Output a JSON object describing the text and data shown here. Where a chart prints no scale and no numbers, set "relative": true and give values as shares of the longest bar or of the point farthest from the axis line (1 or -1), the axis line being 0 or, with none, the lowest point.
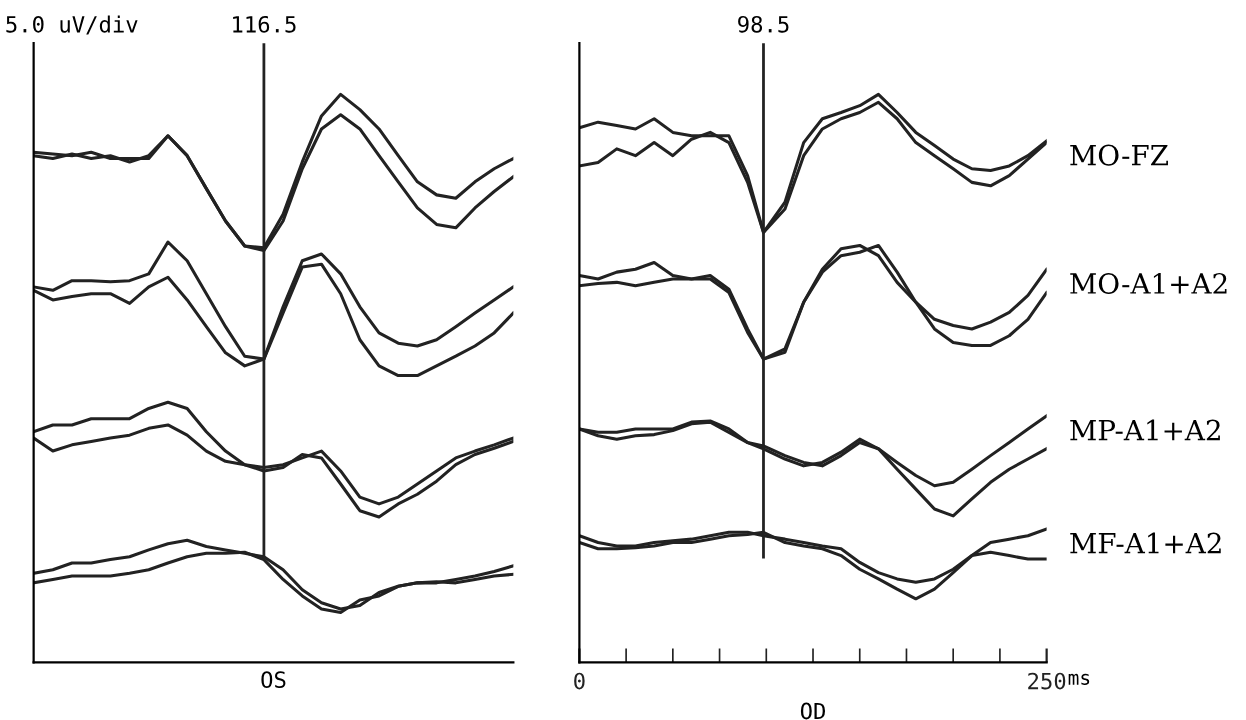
{
  "chart_data": [
    {
      "type": "line",
      "relative": true,
      "xlabel": "OS",
      "annotations": [
        "5.0 uV/div",
        "116.5"
      ],
      "tick_labels": false,
      "grid": false,
      "legend": false,
      "categories": [
        null,
        null,
        null,
        null,
        null,
        null,
        null,
        null,
        null,
        null,
        null,
        null,
        null,
        null,
        null,
        null,
        null,
        null,
        null,
        null,
        null,
        null,
        null,
        null,
        null,
        null
      ],
      "series": [
        {
          "color": "#222222",
          "values": [
            0.898,
            0.895,
            0.892,
            0.898,
            0.887,
            0.887,
            0.887,
            0.927,
            0.892,
            0.834,
            0.777,
            0.733,
            0.73,
            0.789,
            0.881,
            0.962,
            1.0,
            0.973,
            0.939,
            0.892,
            0.846,
            0.823,
            0.817,
            0.846,
            0.869,
            0.887
          ]
        },
        {
          "color": "#222222",
          "values": [
            0.892,
            0.887,
            0.895,
            0.887,
            0.892,
            0.881,
            0.892,
            0.927,
            0.892,
            0.834,
            0.777,
            0.733,
            0.725,
            0.777,
            0.869,
            0.939,
            0.964,
            0.939,
            0.892,
            0.846,
            0.8,
            0.771,
            0.765,
            0.8,
            0.829,
            0.855
          ]
        },
        {
          "color": "#222222",
          "values": [
            0.661,
            0.655,
            0.672,
            0.672,
            0.67,
            0.672,
            0.684,
            0.74,
            0.707,
            0.649,
            0.591,
            0.539,
            0.534,
            0.626,
            0.707,
            0.719,
            0.684,
            0.626,
            0.58,
            0.562,
            0.557,
            0.568,
            0.591,
            0.615,
            0.638,
            0.661
          ]
        },
        {
          "color": "#222222",
          "values": [
            0.655,
            0.638,
            0.644,
            0.649,
            0.649,
            0.632,
            0.661,
            0.678,
            0.638,
            0.591,
            0.545,
            0.522,
            0.534,
            0.615,
            0.696,
            0.701,
            0.649,
            0.568,
            0.522,
            0.505,
            0.505,
            0.522,
            0.539,
            0.557,
            0.58,
            0.615
          ]
        },
        {
          "color": "#222222",
          "values": [
            0.406,
            0.418,
            0.418,
            0.429,
            0.429,
            0.429,
            0.447,
            0.458,
            0.447,
            0.406,
            0.372,
            0.348,
            0.343,
            0.348,
            0.36,
            0.372,
            0.337,
            0.291,
            0.279,
            0.291,
            0.314,
            0.337,
            0.36,
            0.372,
            0.383,
            0.395
          ]
        },
        {
          "color": "#222222",
          "values": [
            0.395,
            0.372,
            0.383,
            0.389,
            0.395,
            0.4,
            0.412,
            0.418,
            0.4,
            0.372,
            0.354,
            0.348,
            0.337,
            0.343,
            0.366,
            0.36,
            0.314,
            0.267,
            0.256,
            0.279,
            0.296,
            0.319,
            0.348,
            0.366,
            0.377,
            0.389
          ]
        },
        {
          "color": "#222222",
          "values": [
            0.157,
            0.163,
            0.175,
            0.175,
            0.181,
            0.186,
            0.198,
            0.209,
            0.215,
            0.204,
            0.198,
            0.192,
            0.186,
            0.163,
            0.128,
            0.105,
            0.094,
            0.1,
            0.123,
            0.134,
            0.14,
            0.14,
            0.146,
            0.152,
            0.16,
            0.17
          ]
        },
        {
          "color": "#222222",
          "values": [
            0.14,
            0.146,
            0.152,
            0.152,
            0.152,
            0.157,
            0.163,
            0.175,
            0.186,
            0.192,
            0.192,
            0.194,
            0.181,
            0.146,
            0.117,
            0.094,
            0.088,
            0.11,
            0.117,
            0.134,
            0.14,
            0.142,
            0.14,
            0.146,
            0.152,
            0.155
          ]
        }
      ]
    },
    {
      "type": "line",
      "relative": true,
      "xlabel": "OD",
      "annotations": [
        "ms"
      ],
      "xlim": [
        0,
        250
      ],
      "xticks": [
        0,
        {
          "value": 25,
          "label": null
        },
        {
          "value": 50,
          "label": null
        },
        {
          "value": 75,
          "label": null
        },
        {
          "value": 100,
          "label": null
        },
        {
          "value": 125,
          "label": null
        },
        {
          "value": 150,
          "label": null
        },
        {
          "value": 175,
          "label": null
        },
        {
          "value": 200,
          "label": null
        },
        {
          "value": 225,
          "label": null
        },
        250
      ],
      "tick_labels": "x",
      "grid": false,
      "legend": false,
      "ref_lines": [
        {
          "axis": "x",
          "value": 98.5,
          "label": "98.5",
          "color": "#222222"
        }
      ],
      "x": [
        0,
        10,
        20,
        30,
        40,
        50,
        60,
        70,
        80,
        90,
        98.5,
        110,
        120,
        130,
        140,
        150,
        160,
        170,
        180,
        190,
        200,
        210,
        220,
        230,
        240,
        250
      ],
      "series": [
        {
          "name": "MO-FZ",
          "color": "#222222",
          "values": [
            0.941,
            0.951,
            0.945,
            0.939,
            0.957,
            0.933,
            0.927,
            0.927,
            0.927,
            0.857,
            0.757,
            0.81,
            0.915,
            0.957,
            0.968,
            0.98,
            1.0,
            0.968,
            0.933,
            0.91,
            0.886,
            0.869,
            0.866,
            0.874,
            0.892,
            0.918
          ]
        },
        {
          "color": "#222222",
          "values": [
            0.874,
            0.88,
            0.904,
            0.892,
            0.915,
            0.892,
            0.921,
            0.933,
            0.915,
            0.845,
            0.757,
            0.798,
            0.892,
            0.939,
            0.957,
            0.968,
            0.986,
            0.957,
            0.915,
            0.892,
            0.869,
            0.845,
            0.839,
            0.857,
            0.886,
            0.915
          ]
        },
        {
          "name": "MO-A1+A2",
          "color": "#222222",
          "values": [
            0.681,
            0.675,
            0.687,
            0.692,
            0.704,
            0.681,
            0.675,
            0.681,
            0.657,
            0.587,
            0.534,
            0.552,
            0.634,
            0.692,
            0.728,
            0.734,
            0.716,
            0.669,
            0.634,
            0.604,
            0.593,
            0.587,
            0.599,
            0.616,
            0.646,
            0.692
          ]
        },
        {
          "color": "#222222",
          "values": [
            0.663,
            0.667,
            0.669,
            0.663,
            0.669,
            0.675,
            0.675,
            0.675,
            0.651,
            0.581,
            0.534,
            0.546,
            0.634,
            0.687,
            0.716,
            0.722,
            0.734,
            0.687,
            0.634,
            0.587,
            0.563,
            0.558,
            0.558,
            0.575,
            0.604,
            0.651
          ]
        },
        {
          "name": "MP-A1+A2",
          "color": "#222222",
          "values": [
            0.411,
            0.405,
            0.405,
            0.411,
            0.411,
            0.411,
            0.423,
            0.425,
            0.411,
            0.387,
            0.381,
            0.364,
            0.352,
            0.346,
            0.364,
            0.387,
            0.376,
            0.352,
            0.329,
            0.311,
            0.317,
            0.34,
            0.364,
            0.387,
            0.411,
            0.434
          ]
        },
        {
          "color": "#222222",
          "values": [
            0.411,
            0.399,
            0.393,
            0.399,
            0.401,
            0.408,
            0.42,
            0.423,
            0.405,
            0.387,
            0.376,
            0.358,
            0.346,
            0.352,
            0.37,
            0.393,
            0.376,
            0.34,
            0.305,
            0.27,
            0.258,
            0.288,
            0.317,
            0.34,
            0.358,
            0.376
          ]
        },
        {
          "name": "MF-A1+A2",
          "color": "#222222",
          "values": [
            0.223,
            0.211,
            0.205,
            0.205,
            0.211,
            0.214,
            0.217,
            0.223,
            0.229,
            0.229,
            0.223,
            0.217,
            0.211,
            0.205,
            0.2,
            0.176,
            0.158,
            0.147,
            0.141,
            0.147,
            0.164,
            0.188,
            0.211,
            0.217,
            0.223,
            0.235
          ]
        },
        {
          "color": "#222222",
          "values": [
            0.211,
            0.2,
            0.2,
            0.202,
            0.205,
            0.211,
            0.211,
            0.217,
            0.223,
            0.225,
            0.229,
            0.211,
            0.205,
            0.2,
            0.188,
            0.164,
            0.147,
            0.129,
            0.112,
            0.129,
            0.158,
            0.188,
            0.194,
            0.188,
            0.182,
            0.182
          ]
        }
      ]
    }
  ]
}
